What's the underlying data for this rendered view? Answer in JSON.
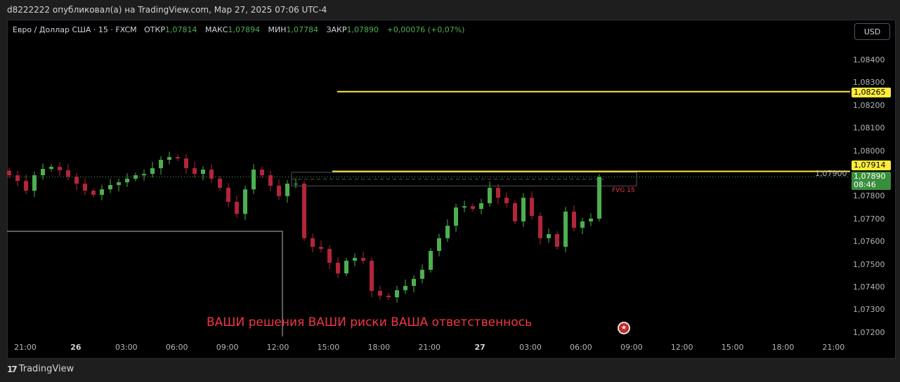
{
  "header": {
    "published": "d8222222 опубликовал(а) на TradingView.com, Мар 27, 2025 07:06 UTC-4"
  },
  "legend": {
    "symbol": "Евро / Доллар США · 15 · FXCM",
    "open_label": "ОТКР",
    "open": "1,07814",
    "high_label": "МАКС",
    "high": "1,07894",
    "low_label": "МИН",
    "low": "1,07784",
    "close_label": "ЗАКР",
    "close": "1,07890",
    "change": "+0,00076 (+0,07%)"
  },
  "currency_button": "USD",
  "price_axis": [
    "1,08400",
    "1,08300",
    "1,08200",
    "1,08100",
    "1,08000",
    "1,07900",
    "1,07800",
    "1,07700",
    "1,07600",
    "1,07500",
    "1,07400",
    "1,07300",
    "1,07200"
  ],
  "time_axis": [
    {
      "t": "21:00"
    },
    {
      "t": "26",
      "bold": true
    },
    {
      "t": "03:00"
    },
    {
      "t": "06:00"
    },
    {
      "t": "09:00"
    },
    {
      "t": "12:00"
    },
    {
      "t": "15:00"
    },
    {
      "t": "18:00"
    },
    {
      "t": "21:00"
    },
    {
      "t": "27",
      "bold": true
    },
    {
      "t": "03:00"
    },
    {
      "t": "06:00"
    },
    {
      "t": "09:00"
    },
    {
      "t": "12:00"
    },
    {
      "t": "15:00"
    },
    {
      "t": "18:00"
    },
    {
      "t": "21:00"
    }
  ],
  "levels": {
    "upper": "1,08265",
    "lower": "1,07914"
  },
  "last_price": {
    "price": "1,07890",
    "countdown": "08:46"
  },
  "fvg_label": "FVG 15",
  "warning_text": "ВАШИ решения ВАШИ риски ВАША ответственнось",
  "brand": "TradingView",
  "colors": {
    "up": "#4caf50",
    "down": "#b2253a",
    "level": "#ffeb3b",
    "warning": "#f23645"
  },
  "chart_data": {
    "type": "candlestick",
    "closes": [
      1.07897,
      1.07872,
      1.07829,
      1.07897,
      1.07925,
      1.07934,
      1.07919,
      1.07891,
      1.0786,
      1.07829,
      1.07811,
      1.07835,
      1.07854,
      1.07866,
      1.07882,
      1.07897,
      1.07903,
      1.07928,
      1.07965,
      1.07977,
      1.07971,
      1.07928,
      1.07903,
      1.07922,
      1.07882,
      1.07842,
      1.0778,
      1.07727,
      1.07835,
      1.07922,
      1.07897,
      1.07851,
      1.07805,
      1.0786,
      1.0786,
      1.0762,
      1.07582,
      1.07573,
      1.07512,
      1.07465,
      1.07521,
      1.07533,
      1.07521,
      1.07388,
      1.07367,
      1.0736,
      1.07391,
      1.0741,
      1.07441,
      1.07481,
      1.07564,
      1.0762,
      1.07675,
      1.07755,
      1.07761,
      1.07749,
      1.07774,
      1.07842,
      1.07798,
      1.07774,
      1.07694,
      1.07798,
      1.07718,
      1.0762,
      1.07638,
      1.07582,
      1.07737,
      1.07666,
      1.07694,
      1.07706,
      1.0789
    ],
    "ylim": [
      1.0719,
      1.0845
    ],
    "hlines": [
      1.08265,
      1.07914
    ],
    "fvg": [
      1.0785,
      1.0791
    ]
  }
}
